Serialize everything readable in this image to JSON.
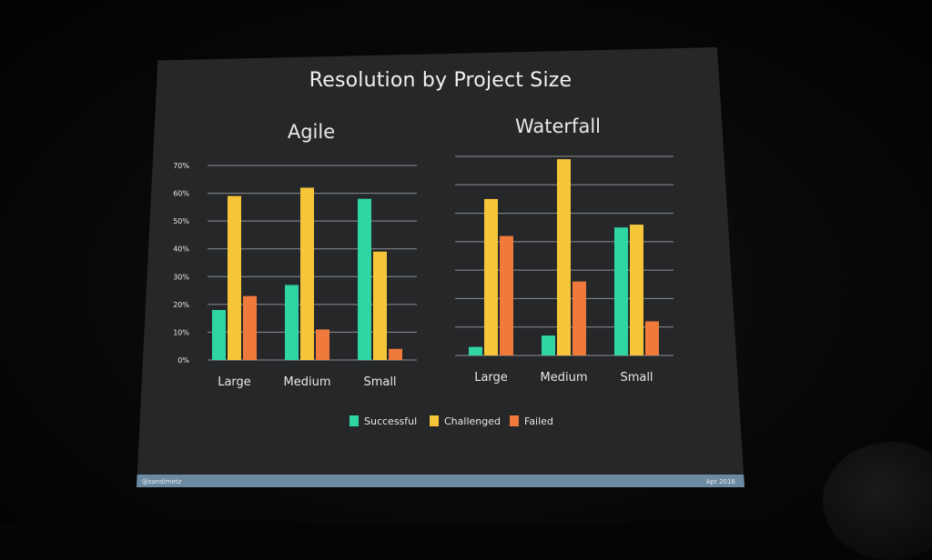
{
  "slide": {
    "title": "Resolution by Project Size",
    "footer_left": "@sandimetz",
    "footer_right": "Apr 2016"
  },
  "colors": {
    "Successful": "#2fd6a4",
    "Challenged": "#f6c63a",
    "Failed": "#ef7a3b",
    "gridline": "#8c8f94",
    "slide_bg": "#262729"
  },
  "chart_data": [
    {
      "type": "bar",
      "title": "Agile",
      "categories": [
        "Large",
        "Medium",
        "Small"
      ],
      "ylim": [
        0,
        70
      ],
      "yticks": [
        0,
        10,
        20,
        30,
        40,
        50,
        60,
        70
      ],
      "ytick_labels": [
        "0%",
        "10%",
        "20%",
        "30%",
        "40%",
        "50%",
        "60%",
        "70%"
      ],
      "grid": true,
      "legend": "bottom",
      "series": [
        {
          "name": "Successful",
          "values": [
            18,
            27,
            58
          ]
        },
        {
          "name": "Challenged",
          "values": [
            59,
            62,
            39
          ]
        },
        {
          "name": "Failed",
          "values": [
            23,
            11,
            4
          ]
        }
      ]
    },
    {
      "type": "bar",
      "title": "Waterfall",
      "categories": [
        "Large",
        "Medium",
        "Small"
      ],
      "ylim": [
        0,
        70
      ],
      "yticks": [
        0,
        10,
        20,
        30,
        40,
        50,
        60,
        70
      ],
      "grid": true,
      "legend": "bottom",
      "series": [
        {
          "name": "Successful",
          "values": [
            3,
            7,
            45
          ]
        },
        {
          "name": "Challenged",
          "values": [
            55,
            69,
            46
          ]
        },
        {
          "name": "Failed",
          "values": [
            42,
            26,
            12
          ]
        }
      ]
    }
  ]
}
